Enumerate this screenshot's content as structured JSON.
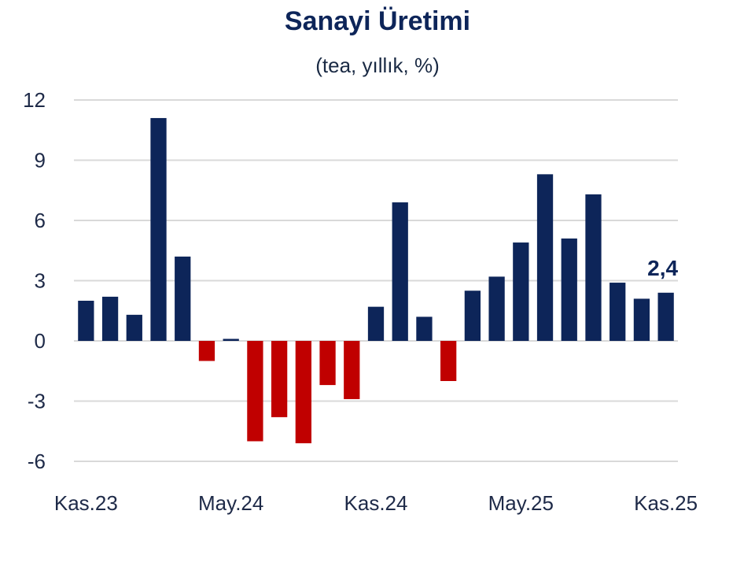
{
  "chart_data": {
    "type": "bar",
    "title": "Sanayi Üretimi",
    "subtitle": "(tea, yıllık, %)",
    "xlabel": "",
    "ylabel": "",
    "ylim": [
      -7,
      12
    ],
    "yticks": [
      12,
      9,
      6,
      3,
      0,
      -3,
      -6
    ],
    "grid": true,
    "legend": "none",
    "categories": [
      "Kas.23",
      "Ara.23",
      "Oca.24",
      "Şub.24",
      "Mar.24",
      "Nis.24",
      "May.24",
      "Haz.24",
      "Tem.24",
      "Ağu.24",
      "Eyl.24",
      "Eki.24",
      "Kas.24",
      "Ara.24",
      "Oca.25",
      "Şub.25",
      "Mar.25",
      "Nis.25",
      "May.25",
      "Haz.25",
      "Tem.25",
      "Ağu.25",
      "Eyl.25",
      "Eki.25",
      "Kas.25"
    ],
    "x_tick_labels": [
      {
        "index": 0,
        "label": "Kas.23"
      },
      {
        "index": 6,
        "label": "May.24"
      },
      {
        "index": 12,
        "label": "Kas.24"
      },
      {
        "index": 18,
        "label": "May.25"
      },
      {
        "index": 24,
        "label": "Kas.25"
      }
    ],
    "values": [
      2.0,
      2.2,
      1.3,
      11.1,
      4.2,
      -1.0,
      0.1,
      -5.0,
      -3.8,
      -5.1,
      -2.2,
      -2.9,
      1.7,
      6.9,
      1.2,
      -2.0,
      2.5,
      3.2,
      4.9,
      8.3,
      5.1,
      7.3,
      2.9,
      2.1,
      2.4
    ],
    "annotation": {
      "index": 24,
      "text": "2,4"
    },
    "colors": {
      "positive": "#0d2559",
      "negative": "#c00000"
    }
  }
}
